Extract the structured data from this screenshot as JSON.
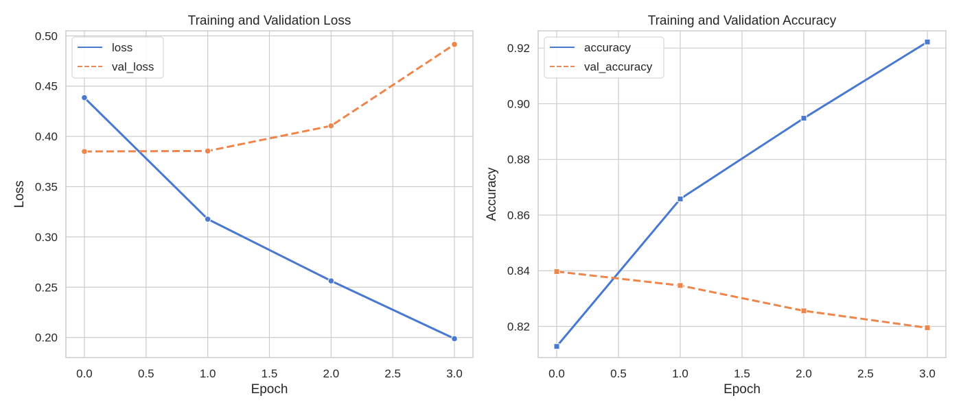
{
  "colors": {
    "blue": "#4878d0",
    "orange": "#ee854a",
    "grid": "#cccccc"
  },
  "chart_data": [
    {
      "type": "line",
      "title": "Training and Validation Loss",
      "xlabel": "Epoch",
      "ylabel": "Loss",
      "xlim": [
        -0.15,
        3.15
      ],
      "ylim": [
        0.18,
        0.505
      ],
      "xticks": [
        0.0,
        0.5,
        1.0,
        1.5,
        2.0,
        2.5,
        3.0
      ],
      "xtick_labels": [
        "0.0",
        "0.5",
        "1.0",
        "1.5",
        "2.0",
        "2.5",
        "3.0"
      ],
      "yticks": [
        0.2,
        0.25,
        0.3,
        0.35,
        0.4,
        0.45,
        0.5
      ],
      "ytick_labels": [
        "0.20",
        "0.25",
        "0.30",
        "0.35",
        "0.40",
        "0.45",
        "0.50"
      ],
      "grid": true,
      "legend_position": "top-left",
      "marker": "circle",
      "x": [
        0,
        1,
        2,
        3
      ],
      "series": [
        {
          "name": "loss",
          "values": [
            0.4385,
            0.3177,
            0.2563,
            0.1988
          ],
          "color": "#4878d0",
          "style": "solid"
        },
        {
          "name": "val_loss",
          "values": [
            0.385,
            0.3855,
            0.4105,
            0.4915
          ],
          "color": "#ee854a",
          "style": "dashed"
        }
      ]
    },
    {
      "type": "line",
      "title": "Training and Validation Accuracy",
      "xlabel": "Epoch",
      "ylabel": "Accuracy",
      "xlim": [
        -0.15,
        3.15
      ],
      "ylim": [
        0.8088,
        0.9262
      ],
      "xticks": [
        0.0,
        0.5,
        1.0,
        1.5,
        2.0,
        2.5,
        3.0
      ],
      "xtick_labels": [
        "0.0",
        "0.5",
        "1.0",
        "1.5",
        "2.0",
        "2.5",
        "3.0"
      ],
      "yticks": [
        0.82,
        0.84,
        0.86,
        0.88,
        0.9,
        0.92
      ],
      "ytick_labels": [
        "0.82",
        "0.84",
        "0.86",
        "0.88",
        "0.90",
        "0.92"
      ],
      "grid": true,
      "legend_position": "top-left",
      "marker": "square",
      "x": [
        0,
        1,
        2,
        3
      ],
      "series": [
        {
          "name": "accuracy",
          "values": [
            0.8128,
            0.8658,
            0.8948,
            0.9222
          ],
          "color": "#4878d0",
          "style": "solid"
        },
        {
          "name": "val_accuracy",
          "values": [
            0.8397,
            0.8347,
            0.8256,
            0.8195
          ],
          "color": "#ee854a",
          "style": "dashed"
        }
      ]
    }
  ]
}
